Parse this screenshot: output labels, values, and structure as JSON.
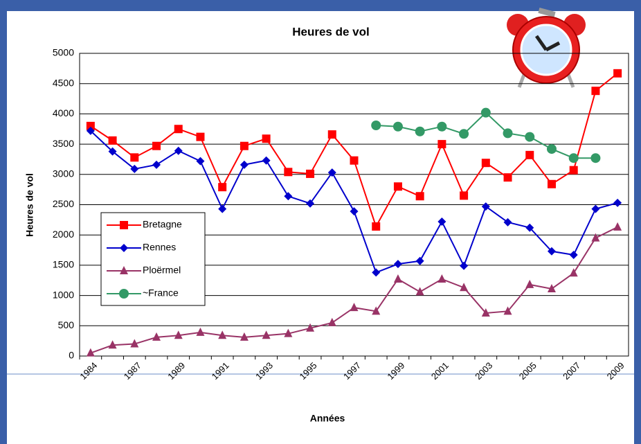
{
  "chart_data": {
    "type": "line",
    "title": "Heures de vol",
    "x_label": "Années",
    "y_label": "Heures de vol",
    "categories": [
      "1984",
      null,
      "1987",
      null,
      "1989",
      null,
      "1991",
      null,
      "1993",
      null,
      "1995",
      null,
      "1997",
      null,
      "1999",
      null,
      "2001",
      null,
      "2003",
      null,
      "2005",
      null,
      "2007",
      null,
      "2009"
    ],
    "series": [
      {
        "name": "Bretagne",
        "color": "#ff0000",
        "marker": "square",
        "values": [
          3800,
          3560,
          3280,
          3470,
          3750,
          3620,
          2790,
          3470,
          3590,
          3040,
          3010,
          3660,
          3230,
          2140,
          2800,
          2640,
          3500,
          2650,
          3190,
          2950,
          3320,
          2840,
          3070,
          4380,
          4670
        ]
      },
      {
        "name": "Rennes",
        "color": "#0000cc",
        "marker": "diamond",
        "values": [
          3720,
          3380,
          3090,
          3160,
          3390,
          3220,
          2430,
          3160,
          3230,
          2640,
          2520,
          3030,
          2390,
          1380,
          1520,
          1570,
          2220,
          1490,
          2470,
          2210,
          2120,
          1730,
          1670,
          2430,
          2530
        ]
      },
      {
        "name": "Ploërmel",
        "color": "#993366",
        "marker": "triangle",
        "values": [
          50,
          180,
          200,
          310,
          340,
          390,
          340,
          310,
          340,
          370,
          460,
          550,
          800,
          740,
          1270,
          1060,
          1270,
          1130,
          710,
          740,
          1180,
          1110,
          1370,
          1950,
          2130
        ]
      },
      {
        "name": "~France",
        "color": "#339966",
        "marker": "circle",
        "values": [
          null,
          null,
          null,
          null,
          null,
          null,
          null,
          null,
          null,
          null,
          null,
          null,
          null,
          3810,
          3790,
          3710,
          3790,
          3670,
          4020,
          3680,
          3620,
          3420,
          3270,
          3270,
          null
        ]
      }
    ],
    "ylim": [
      0,
      5000
    ],
    "yticks": [
      0,
      500,
      1000,
      1500,
      2000,
      2500,
      3000,
      3500,
      4000,
      4500,
      5000
    ],
    "grid": true
  }
}
